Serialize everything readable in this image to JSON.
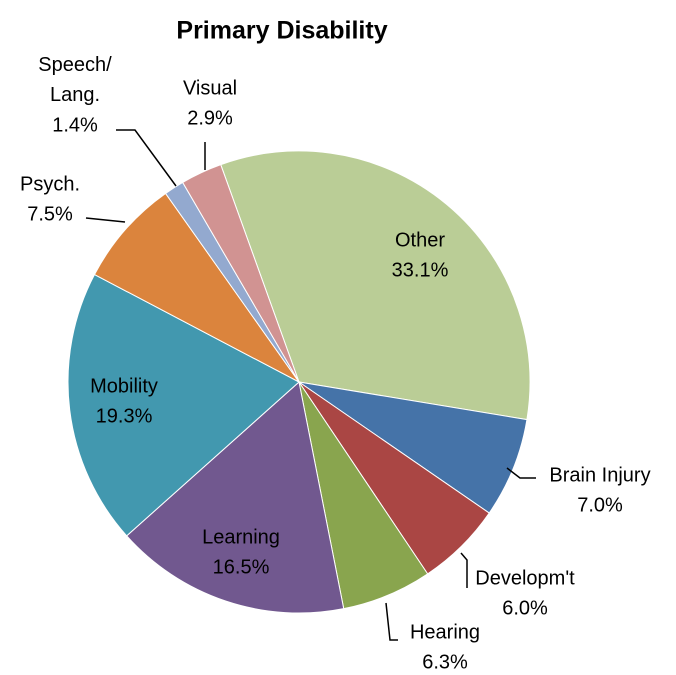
{
  "chart_data": {
    "type": "pie",
    "title": "Primary Disability",
    "categories": [
      "Other",
      "Brain Injury",
      "Developm't",
      "Hearing",
      "Learning",
      "Mobility",
      "Psych.",
      "Speech/ Lang.",
      "Visual"
    ],
    "values": [
      33.1,
      7.0,
      6.0,
      6.3,
      16.5,
      19.3,
      7.5,
      1.4,
      2.9
    ],
    "value_labels": [
      "33.1%",
      "7.0%",
      "6.0%",
      "6.3%",
      "16.5%",
      "19.3%",
      "7.5%",
      "1.4%",
      "2.9%"
    ],
    "colors": [
      "#bacd96",
      "#4573a8",
      "#aa4644",
      "#89a54e",
      "#71588f",
      "#4298af",
      "#db843d",
      "#93a9cf",
      "#d19392"
    ]
  }
}
